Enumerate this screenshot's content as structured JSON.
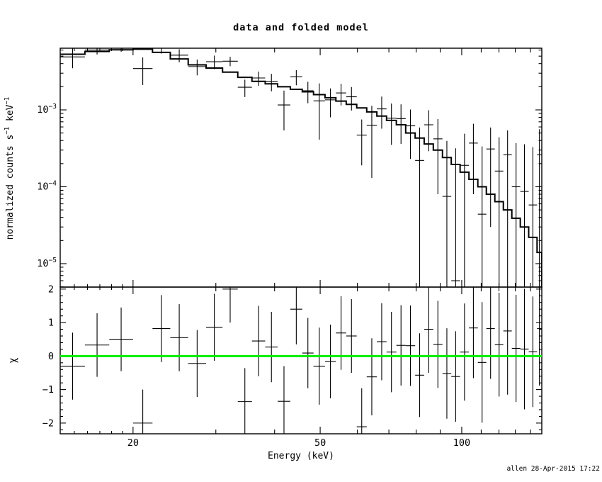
{
  "header": {
    "title": "data and folded model"
  },
  "axes": {
    "xlabel": "Energy (keV)",
    "ylabel_top": {
      "pre": "normalized counts s",
      "sup1": "−1",
      "mid": " keV",
      "sup2": "−1"
    },
    "ylabel_bottom": "χ",
    "x_major_ticks": [
      20,
      50,
      100
    ],
    "x_major_labels": [
      "20",
      "50",
      "100"
    ],
    "x_minor_ticks": [
      15,
      16,
      17,
      18,
      19,
      30,
      40,
      60,
      70,
      80,
      90,
      110,
      120,
      130,
      140
    ],
    "top_y_tick_exponents": [
      -3,
      -4,
      -5
    ],
    "bottom_y_ticks": [
      2,
      1,
      0,
      -1,
      -2
    ],
    "bottom_y_labels": [
      "2",
      "1",
      "0",
      "−1",
      "−2"
    ]
  },
  "footer": {
    "timestamp": "allen 28-Apr-2015 17:22"
  },
  "colors": {
    "foreground": "#000000",
    "background": "#ffffff",
    "zero_line_green": "#00ee00",
    "model_line": "#000000"
  },
  "chart_data": [
    {
      "type": "scatter",
      "title": "data and folded model",
      "xlabel": "Energy (keV)",
      "ylabel": "normalized counts s^-1 keV^-1",
      "xscale": "log",
      "yscale": "log",
      "xlim": [
        14.0,
        148.0
      ],
      "ylim": [
        4.96e-06,
        0.00634
      ],
      "legend": "none",
      "grid": false,
      "series_note": "crosses = data with 1-sigma errors, stepped histogram = folded model",
      "bin_edges_keV": [
        14.0,
        15.8,
        17.8,
        20.0,
        22.0,
        24.0,
        26.2,
        28.6,
        31.0,
        33.4,
        35.8,
        38.2,
        40.6,
        43.2,
        45.8,
        48.4,
        51.2,
        54.0,
        56.8,
        59.8,
        62.8,
        66.0,
        69.2,
        72.6,
        76.0,
        79.6,
        83.2,
        87.0,
        91.0,
        95.0,
        99.2,
        103.6,
        108.2,
        112.8,
        117.6,
        122.6,
        127.8,
        133.2,
        138.8,
        144.6,
        148.0
      ],
      "data_counts": [
        0.00488,
        0.006,
        0.0064,
        0.00345,
        0.0065,
        0.00515,
        0.00366,
        0.00423,
        0.0043,
        0.00197,
        0.0026,
        0.00234,
        0.00116,
        0.00269,
        0.00177,
        0.00131,
        0.00135,
        0.00166,
        0.00148,
        0.00047,
        0.00063,
        0.00103,
        0.00078,
        0.00077,
        0.00062,
        0.00022,
        0.00064,
        0.00042,
        7.5e-05,
        6e-06,
        0.00019,
        0.00037,
        4.4e-05,
        0.00031,
        0.00016,
        0.00026,
        0.0001,
        8.7e-05,
        5.8e-05,
        0.00026
      ],
      "data_err": [
        0.0014,
        0.00075,
        0.0007,
        0.00135,
        0.0011,
        0.001,
        0.00085,
        0.00085,
        0.0006,
        0.0005,
        0.00055,
        0.0006,
        0.00062,
        0.0006,
        0.00055,
        0.0009,
        0.00055,
        0.00052,
        0.0005,
        0.00028,
        0.0005,
        0.00046,
        0.00043,
        0.00041,
        0.00039,
        0.00037,
        0.00035,
        0.00034,
        0.00032,
        0.00031,
        0.0003,
        0.00029,
        0.00029,
        0.00028,
        0.00028,
        0.00028,
        0.00027,
        0.00027,
        0.00027,
        0.0003
      ],
      "model_counts": [
        0.0053,
        0.00575,
        0.00605,
        0.00615,
        0.0056,
        0.0046,
        0.00385,
        0.0035,
        0.0031,
        0.00265,
        0.00235,
        0.00218,
        0.002,
        0.00185,
        0.00172,
        0.00158,
        0.00144,
        0.0013,
        0.00118,
        0.00106,
        0.00094,
        0.00083,
        0.00073,
        0.00064,
        0.0005,
        0.00043,
        0.00036,
        0.0003,
        0.00024,
        0.000195,
        0.000155,
        0.000125,
        0.0001,
        8e-05,
        6.4e-05,
        5e-05,
        3.9e-05,
        3e-05,
        2.2e-05,
        1.4e-05
      ]
    },
    {
      "type": "scatter",
      "title": "fit residuals",
      "xlabel": "Energy (keV)",
      "ylabel": "chi",
      "xscale": "log",
      "yscale": "linear",
      "xlim": [
        14.0,
        148.0
      ],
      "ylim": [
        -2.32,
        2.06
      ],
      "zero_line": {
        "y": 0,
        "color": "#00ee00"
      },
      "chi": [
        -0.3,
        0.33,
        0.5,
        -2.0,
        0.82,
        0.55,
        -0.22,
        0.86,
        2.0,
        -1.36,
        0.45,
        0.27,
        -1.35,
        1.4,
        0.09,
        -0.3,
        -0.16,
        0.69,
        0.6,
        -2.11,
        -0.62,
        0.43,
        0.12,
        0.32,
        0.31,
        -0.57,
        0.8,
        0.35,
        -0.52,
        -0.61,
        0.12,
        0.84,
        -0.19,
        0.82,
        0.34,
        0.75,
        0.23,
        0.21,
        0.13,
        0.82
      ],
      "chi_err": [
        1.0,
        0.95,
        0.95,
        1.0,
        1.0,
        1.0,
        1.0,
        1.0,
        1.0,
        1.0,
        1.05,
        1.05,
        1.05,
        1.05,
        1.05,
        1.15,
        1.1,
        1.1,
        1.1,
        1.15,
        1.15,
        1.15,
        1.2,
        1.2,
        1.2,
        1.25,
        1.3,
        1.3,
        1.35,
        1.35,
        1.45,
        1.5,
        1.8,
        1.5,
        1.55,
        1.9,
        1.6,
        1.8,
        1.65,
        1.7
      ]
    }
  ]
}
